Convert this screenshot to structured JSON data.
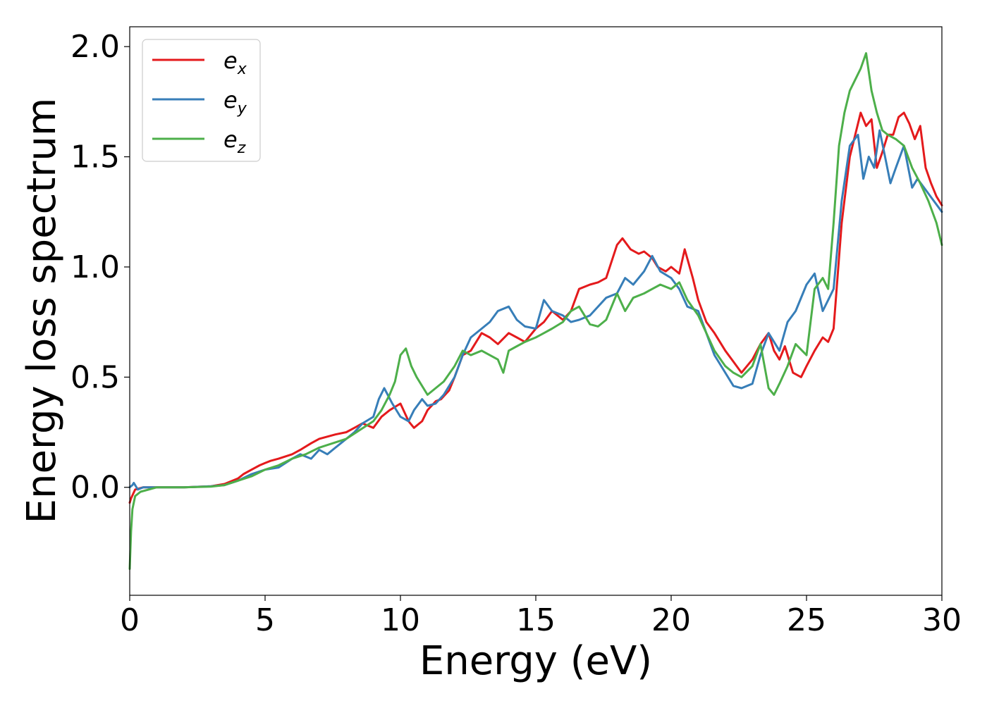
{
  "chart_data": {
    "type": "line",
    "title": "",
    "xlabel": "Energy (eV)",
    "ylabel": "Energy loss spectrum",
    "xlim": [
      0,
      30
    ],
    "ylim": [
      -0.49,
      2.09
    ],
    "xticks": [
      0,
      5,
      10,
      15,
      20,
      25,
      30
    ],
    "yticks": [
      0.0,
      0.5,
      1.0,
      1.5,
      2.0
    ],
    "xtick_labels": [
      "0",
      "5",
      "10",
      "15",
      "20",
      "25",
      "30"
    ],
    "ytick_labels": [
      "0.0",
      "0.5",
      "1.0",
      "1.5",
      "2.0"
    ],
    "grid": false,
    "legend_position": "top-left",
    "series": [
      {
        "name": "e_x",
        "label_base": "e",
        "label_sub": "x",
        "color": "#e41a1c",
        "x": [
          0,
          0.05,
          0.2,
          0.5,
          1,
          2,
          3,
          3.5,
          4,
          4.2,
          4.5,
          4.8,
          5.0,
          5.2,
          5.5,
          6.0,
          6.3,
          6.7,
          7.0,
          7.3,
          7.6,
          8.0,
          8.3,
          8.6,
          9.0,
          9.3,
          9.6,
          10.0,
          10.3,
          10.5,
          10.8,
          11.0,
          11.3,
          11.5,
          11.8,
          12.0,
          12.3,
          12.6,
          13.0,
          13.3,
          13.6,
          14.0,
          14.3,
          14.6,
          15.0,
          15.3,
          15.6,
          16.0,
          16.3,
          16.6,
          17.0,
          17.3,
          17.6,
          18.0,
          18.2,
          18.5,
          18.8,
          19.0,
          19.3,
          19.5,
          19.8,
          20.0,
          20.3,
          20.5,
          20.8,
          21.0,
          21.3,
          21.6,
          22.0,
          22.3,
          22.6,
          23.0,
          23.3,
          23.6,
          23.8,
          24.0,
          24.2,
          24.5,
          24.8,
          25.0,
          25.3,
          25.6,
          25.8,
          26.0,
          26.3,
          26.6,
          26.8,
          27.0,
          27.2,
          27.4,
          27.6,
          27.8,
          28.0,
          28.2,
          28.4,
          28.6,
          28.8,
          29.0,
          29.2,
          29.4,
          29.6,
          29.8,
          30.0
        ],
        "y": [
          -0.07,
          -0.05,
          -0.01,
          0.0,
          0.0,
          0.0,
          0.005,
          0.015,
          0.04,
          0.06,
          0.08,
          0.1,
          0.11,
          0.12,
          0.13,
          0.15,
          0.17,
          0.2,
          0.22,
          0.23,
          0.24,
          0.25,
          0.27,
          0.29,
          0.27,
          0.32,
          0.35,
          0.38,
          0.3,
          0.27,
          0.3,
          0.35,
          0.39,
          0.4,
          0.44,
          0.5,
          0.6,
          0.62,
          0.7,
          0.68,
          0.65,
          0.7,
          0.68,
          0.66,
          0.72,
          0.75,
          0.8,
          0.76,
          0.8,
          0.9,
          0.92,
          0.93,
          0.95,
          1.1,
          1.13,
          1.08,
          1.06,
          1.07,
          1.04,
          1.0,
          0.98,
          1.0,
          0.97,
          1.08,
          0.95,
          0.85,
          0.75,
          0.7,
          0.62,
          0.57,
          0.52,
          0.58,
          0.65,
          0.7,
          0.62,
          0.58,
          0.64,
          0.52,
          0.5,
          0.55,
          0.62,
          0.68,
          0.66,
          0.72,
          1.2,
          1.5,
          1.6,
          1.7,
          1.64,
          1.67,
          1.45,
          1.52,
          1.6,
          1.6,
          1.68,
          1.7,
          1.65,
          1.58,
          1.64,
          1.45,
          1.38,
          1.32,
          1.28
        ]
      },
      {
        "name": "e_y",
        "label_base": "e",
        "label_sub": "y",
        "color": "#377eb8",
        "x": [
          0,
          0.1,
          0.15,
          0.3,
          0.5,
          1,
          2,
          3,
          3.5,
          4,
          4.5,
          5.0,
          5.5,
          6.0,
          6.3,
          6.7,
          7.0,
          7.3,
          7.6,
          8.0,
          8.3,
          8.6,
          9.0,
          9.2,
          9.4,
          9.7,
          10.0,
          10.3,
          10.5,
          10.8,
          11.0,
          11.3,
          11.6,
          12.0,
          12.3,
          12.6,
          13.0,
          13.3,
          13.6,
          14.0,
          14.3,
          14.6,
          15.0,
          15.3,
          15.6,
          16.0,
          16.3,
          16.6,
          17.0,
          17.3,
          17.6,
          18.0,
          18.3,
          18.6,
          19.0,
          19.3,
          19.6,
          20.0,
          20.3,
          20.6,
          21.0,
          21.3,
          21.6,
          22.0,
          22.3,
          22.6,
          23.0,
          23.3,
          23.6,
          24.0,
          24.3,
          24.6,
          25.0,
          25.3,
          25.6,
          25.8,
          26.0,
          26.3,
          26.6,
          26.9,
          27.1,
          27.3,
          27.5,
          27.7,
          27.9,
          28.1,
          28.3,
          28.6,
          28.9,
          29.1,
          29.4,
          29.7,
          30.0
        ],
        "y": [
          0.0,
          0.01,
          0.02,
          -0.01,
          0.0,
          0.0,
          0.0,
          0.005,
          0.01,
          0.03,
          0.06,
          0.08,
          0.09,
          0.13,
          0.15,
          0.13,
          0.17,
          0.15,
          0.18,
          0.22,
          0.25,
          0.29,
          0.32,
          0.4,
          0.45,
          0.38,
          0.32,
          0.3,
          0.35,
          0.4,
          0.37,
          0.38,
          0.42,
          0.5,
          0.6,
          0.68,
          0.72,
          0.75,
          0.8,
          0.82,
          0.76,
          0.73,
          0.72,
          0.85,
          0.8,
          0.78,
          0.75,
          0.76,
          0.78,
          0.82,
          0.86,
          0.88,
          0.95,
          0.92,
          0.98,
          1.05,
          0.98,
          0.95,
          0.9,
          0.82,
          0.8,
          0.7,
          0.6,
          0.52,
          0.46,
          0.45,
          0.47,
          0.6,
          0.7,
          0.62,
          0.75,
          0.8,
          0.92,
          0.97,
          0.8,
          0.85,
          0.9,
          1.3,
          1.55,
          1.6,
          1.4,
          1.5,
          1.45,
          1.62,
          1.5,
          1.38,
          1.45,
          1.55,
          1.36,
          1.4,
          1.35,
          1.3,
          1.25
        ]
      },
      {
        "name": "e_z",
        "label_base": "e",
        "label_sub": "z",
        "color": "#4daf4a",
        "x": [
          0,
          0.05,
          0.1,
          0.2,
          0.4,
          0.7,
          1,
          2,
          3,
          3.5,
          4,
          4.5,
          5.0,
          5.5,
          6.0,
          6.5,
          7.0,
          7.5,
          8.0,
          8.5,
          9.0,
          9.3,
          9.6,
          9.8,
          10.0,
          10.2,
          10.4,
          10.6,
          11.0,
          11.3,
          11.6,
          12.0,
          12.3,
          12.6,
          13.0,
          13.3,
          13.6,
          13.8,
          14.0,
          14.3,
          14.6,
          15.0,
          15.3,
          15.6,
          16.0,
          16.3,
          16.6,
          17.0,
          17.3,
          17.6,
          18.0,
          18.3,
          18.6,
          19.0,
          19.3,
          19.6,
          20.0,
          20.3,
          20.6,
          21.0,
          21.3,
          21.6,
          22.0,
          22.3,
          22.6,
          23.0,
          23.3,
          23.6,
          23.8,
          24.0,
          24.3,
          24.6,
          25.0,
          25.3,
          25.6,
          25.8,
          26.0,
          26.2,
          26.4,
          26.6,
          26.8,
          27.0,
          27.2,
          27.4,
          27.6,
          27.8,
          28.0,
          28.3,
          28.6,
          28.9,
          29.2,
          29.5,
          29.8,
          30.0
        ],
        "y": [
          -0.37,
          -0.2,
          -0.1,
          -0.04,
          -0.02,
          -0.01,
          0.0,
          0.0,
          0.003,
          0.01,
          0.03,
          0.05,
          0.08,
          0.1,
          0.13,
          0.15,
          0.18,
          0.2,
          0.22,
          0.26,
          0.3,
          0.35,
          0.42,
          0.48,
          0.6,
          0.63,
          0.55,
          0.5,
          0.42,
          0.45,
          0.48,
          0.55,
          0.62,
          0.6,
          0.62,
          0.6,
          0.58,
          0.52,
          0.62,
          0.64,
          0.66,
          0.68,
          0.7,
          0.72,
          0.75,
          0.8,
          0.82,
          0.74,
          0.73,
          0.76,
          0.88,
          0.8,
          0.86,
          0.88,
          0.9,
          0.92,
          0.9,
          0.93,
          0.85,
          0.78,
          0.7,
          0.62,
          0.55,
          0.52,
          0.5,
          0.55,
          0.65,
          0.45,
          0.42,
          0.47,
          0.55,
          0.65,
          0.6,
          0.9,
          0.95,
          0.9,
          1.2,
          1.55,
          1.7,
          1.8,
          1.85,
          1.9,
          1.97,
          1.8,
          1.7,
          1.62,
          1.6,
          1.58,
          1.55,
          1.45,
          1.38,
          1.3,
          1.2,
          1.1
        ]
      }
    ]
  }
}
